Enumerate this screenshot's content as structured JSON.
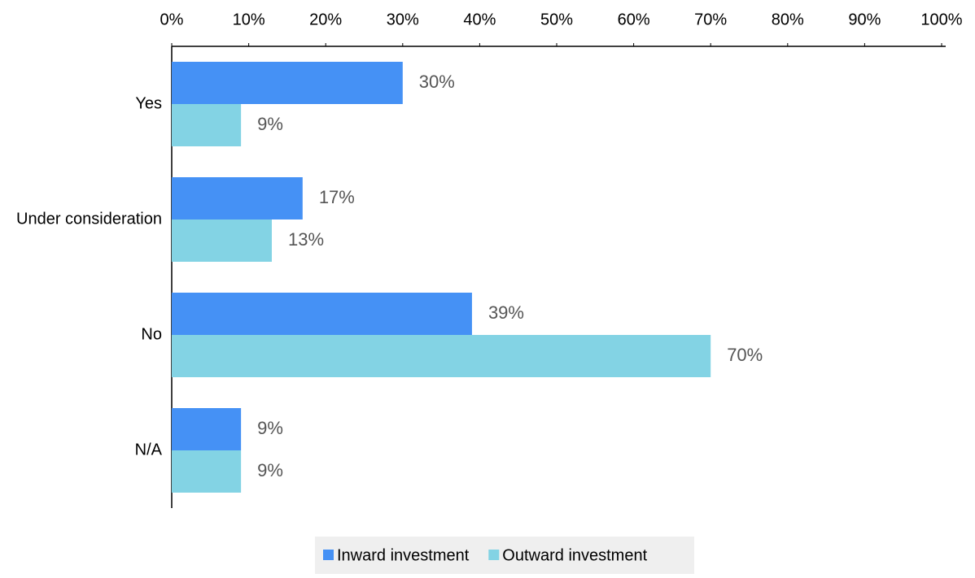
{
  "chart_data": {
    "type": "barh",
    "categories": [
      "Yes",
      "Under consideration",
      "No",
      "N/A"
    ],
    "series": [
      {
        "name": "Inward investment",
        "color": "#4591f5",
        "values": [
          30,
          17,
          39,
          9
        ],
        "value_labels": [
          "30%",
          "17%",
          "39%",
          "9%"
        ]
      },
      {
        "name": "Outward investment",
        "color": "#83d3e4",
        "values": [
          9,
          13,
          70,
          9
        ],
        "value_labels": [
          "9%",
          "13%",
          "70%",
          "9%"
        ]
      }
    ],
    "xlim": [
      0,
      100
    ],
    "xticks": [
      {
        "value": 0,
        "label": "0%"
      },
      {
        "value": 10,
        "label": "10%"
      },
      {
        "value": 20,
        "label": "20%"
      },
      {
        "value": 30,
        "label": "30%"
      },
      {
        "value": 40,
        "label": "40%"
      },
      {
        "value": 50,
        "label": "50%"
      },
      {
        "value": 60,
        "label": "60%"
      },
      {
        "value": 70,
        "label": "70%"
      },
      {
        "value": 80,
        "label": "80%"
      },
      {
        "value": 90,
        "label": "90%"
      },
      {
        "value": 100,
        "label": "100%"
      }
    ],
    "legend": "bottom"
  }
}
